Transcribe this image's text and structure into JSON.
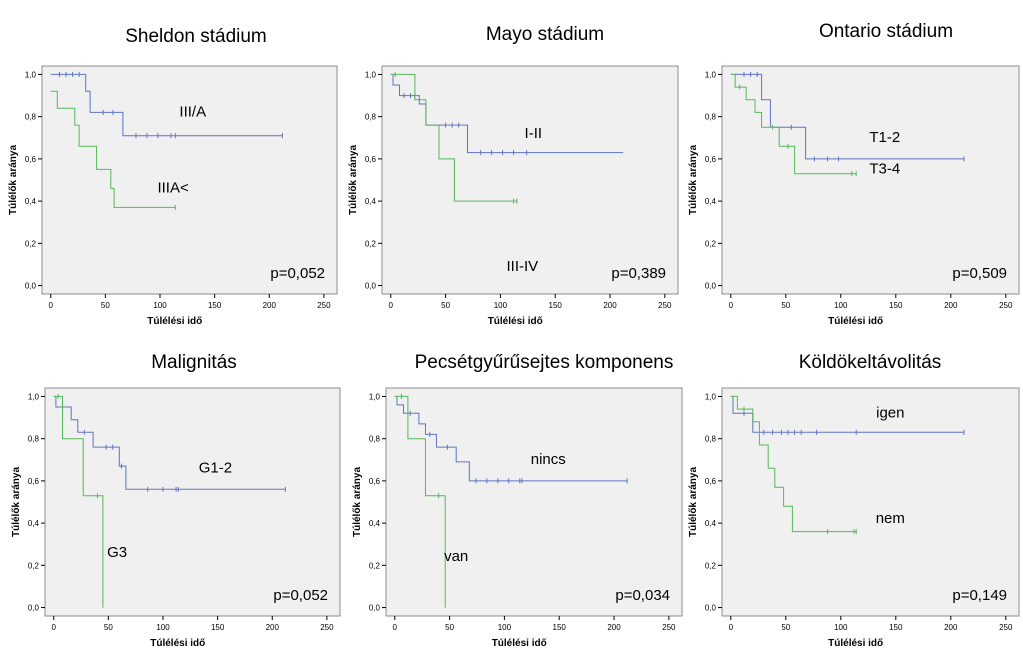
{
  "colors": {
    "series_a": "#5f74c4",
    "series_b": "#55b85a",
    "plot_bg": "#f0f0f0",
    "frame": "#8c8c8c"
  },
  "chart_data": [
    {
      "type": "line",
      "title": "Sheldon stádium",
      "xlabel": "Túlélési idő",
      "ylabel": "Túlélők aránya",
      "xlim": [
        -8,
        262
      ],
      "ylim": [
        -0.04,
        1.04
      ],
      "xticks": [
        "0",
        "50",
        "100",
        "150",
        "200",
        "250"
      ],
      "yticks": [
        "0,0",
        "0,2",
        "0,4",
        "0,6",
        "0,8",
        "1,0"
      ],
      "p_value": "p=0,052",
      "series": [
        {
          "name": "III/A",
          "label_pos": [
            130,
            0.8
          ],
          "color": "#5f74c4",
          "steps": [
            [
              0,
              1.0
            ],
            [
              32,
              1.0
            ],
            [
              32,
              0.92
            ],
            [
              36,
              0.92
            ],
            [
              36,
              0.82
            ],
            [
              66,
              0.82
            ],
            [
              66,
              0.71
            ],
            [
              212,
              0.71
            ]
          ],
          "censored": [
            [
              8,
              1.0
            ],
            [
              14,
              1.0
            ],
            [
              20,
              1.0
            ],
            [
              26,
              1.0
            ],
            [
              48,
              0.82
            ],
            [
              57,
              0.82
            ],
            [
              78,
              0.71
            ],
            [
              88,
              0.71
            ],
            [
              98,
              0.71
            ],
            [
              110,
              0.71
            ],
            [
              114,
              0.71
            ],
            [
              212,
              0.71
            ]
          ]
        },
        {
          "name": "IIIA<",
          "label_pos": [
            112,
            0.44
          ],
          "color": "#55b85a",
          "steps": [
            [
              0,
              0.92
            ],
            [
              6,
              0.92
            ],
            [
              6,
              0.84
            ],
            [
              22,
              0.84
            ],
            [
              22,
              0.76
            ],
            [
              26,
              0.76
            ],
            [
              26,
              0.66
            ],
            [
              42,
              0.66
            ],
            [
              42,
              0.55
            ],
            [
              55,
              0.55
            ],
            [
              55,
              0.46
            ],
            [
              58,
              0.46
            ],
            [
              58,
              0.37
            ],
            [
              114,
              0.37
            ]
          ],
          "censored": [
            [
              114,
              0.37
            ]
          ]
        }
      ]
    },
    {
      "type": "line",
      "title": "Mayo stádium",
      "xlabel": "Túlélési idő",
      "ylabel": "Túlélők aránya",
      "xlim": [
        -8,
        262
      ],
      "ylim": [
        -0.04,
        1.04
      ],
      "xticks": [
        "0",
        "50",
        "100",
        "150",
        "200",
        "250"
      ],
      "yticks": [
        "0,0",
        "0,2",
        "0,4",
        "0,6",
        "0,8",
        "1,0"
      ],
      "p_value": "p=0,389",
      "series": [
        {
          "name": "I-II",
          "label_pos": [
            130,
            0.7
          ],
          "color": "#5f74c4",
          "steps": [
            [
              0,
              1.0
            ],
            [
              2,
              1.0
            ],
            [
              2,
              0.95
            ],
            [
              8,
              0.95
            ],
            [
              8,
              0.9
            ],
            [
              26,
              0.9
            ],
            [
              26,
              0.86
            ],
            [
              32,
              0.86
            ],
            [
              32,
              0.76
            ],
            [
              70,
              0.76
            ],
            [
              70,
              0.63
            ],
            [
              212,
              0.63
            ]
          ],
          "censored": [
            [
              12,
              0.9
            ],
            [
              18,
              0.9
            ],
            [
              22,
              0.9
            ],
            [
              50,
              0.76
            ],
            [
              56,
              0.76
            ],
            [
              62,
              0.76
            ],
            [
              82,
              0.63
            ],
            [
              92,
              0.63
            ],
            [
              102,
              0.63
            ],
            [
              112,
              0.63
            ],
            [
              124,
              0.63
            ]
          ]
        },
        {
          "name": "III-IV",
          "label_pos": [
            120,
            0.07
          ],
          "color": "#55b85a",
          "steps": [
            [
              0,
              1.0
            ],
            [
              22,
              1.0
            ],
            [
              22,
              0.88
            ],
            [
              32,
              0.88
            ],
            [
              32,
              0.76
            ],
            [
              44,
              0.76
            ],
            [
              44,
              0.6
            ],
            [
              58,
              0.6
            ],
            [
              58,
              0.4
            ],
            [
              115,
              0.4
            ]
          ],
          "censored": [
            [
              4,
              1.0
            ],
            [
              112,
              0.4
            ],
            [
              115,
              0.4
            ]
          ]
        }
      ]
    },
    {
      "type": "line",
      "title": "Ontario stádium",
      "xlabel": "Túlélési idő",
      "ylabel": "Túlélők aránya",
      "xlim": [
        -8,
        262
      ],
      "ylim": [
        -0.04,
        1.04
      ],
      "xticks": [
        "0",
        "50",
        "100",
        "150",
        "200",
        "250"
      ],
      "yticks": [
        "0,0",
        "0,2",
        "0,4",
        "0,6",
        "0,8",
        "1,0"
      ],
      "p_value": "p=0,509",
      "series": [
        {
          "name": "T1-2",
          "label_pos": [
            140,
            0.68
          ],
          "color": "#5f74c4",
          "steps": [
            [
              0,
              1.0
            ],
            [
              28,
              1.0
            ],
            [
              28,
              0.88
            ],
            [
              36,
              0.88
            ],
            [
              36,
              0.75
            ],
            [
              68,
              0.75
            ],
            [
              68,
              0.6
            ],
            [
              212,
              0.6
            ]
          ],
          "censored": [
            [
              12,
              1.0
            ],
            [
              18,
              1.0
            ],
            [
              24,
              1.0
            ],
            [
              55,
              0.75
            ],
            [
              76,
              0.6
            ],
            [
              88,
              0.6
            ],
            [
              98,
              0.6
            ],
            [
              212,
              0.6
            ]
          ]
        },
        {
          "name": "T3-4",
          "label_pos": [
            140,
            0.53
          ],
          "color": "#55b85a",
          "steps": [
            [
              0,
              1.0
            ],
            [
              4,
              1.0
            ],
            [
              4,
              0.94
            ],
            [
              14,
              0.94
            ],
            [
              14,
              0.88
            ],
            [
              22,
              0.88
            ],
            [
              22,
              0.82
            ],
            [
              28,
              0.82
            ],
            [
              28,
              0.75
            ],
            [
              44,
              0.75
            ],
            [
              44,
              0.66
            ],
            [
              58,
              0.66
            ],
            [
              58,
              0.53
            ],
            [
              114,
              0.53
            ]
          ],
          "censored": [
            [
              8,
              0.94
            ],
            [
              38,
              0.75
            ],
            [
              52,
              0.66
            ],
            [
              110,
              0.53
            ],
            [
              114,
              0.53
            ]
          ]
        }
      ]
    },
    {
      "type": "line",
      "title": "Malignitás",
      "xlabel": "Túlélési idő",
      "ylabel": "Túlélők aránya",
      "xlim": [
        -8,
        262
      ],
      "ylim": [
        -0.04,
        1.04
      ],
      "xticks": [
        "0",
        "50",
        "100",
        "150",
        "200",
        "250"
      ],
      "yticks": [
        "0,0",
        "0,2",
        "0,4",
        "0,6",
        "0,8",
        "1,0"
      ],
      "p_value": "p=0,052",
      "series": [
        {
          "name": "G1-2",
          "label_pos": [
            148,
            0.64
          ],
          "color": "#5f74c4",
          "steps": [
            [
              0,
              1.0
            ],
            [
              2,
              1.0
            ],
            [
              2,
              0.95
            ],
            [
              16,
              0.95
            ],
            [
              16,
              0.89
            ],
            [
              22,
              0.89
            ],
            [
              22,
              0.83
            ],
            [
              36,
              0.83
            ],
            [
              36,
              0.76
            ],
            [
              60,
              0.76
            ],
            [
              60,
              0.67
            ],
            [
              66,
              0.67
            ],
            [
              66,
              0.56
            ],
            [
              212,
              0.56
            ]
          ],
          "censored": [
            [
              8,
              0.95
            ],
            [
              28,
              0.83
            ],
            [
              48,
              0.76
            ],
            [
              54,
              0.76
            ],
            [
              62,
              0.67
            ],
            [
              86,
              0.56
            ],
            [
              100,
              0.56
            ],
            [
              112,
              0.56
            ],
            [
              114,
              0.56
            ],
            [
              212,
              0.56
            ]
          ]
        },
        {
          "name": "G3",
          "label_pos": [
            58,
            0.24
          ],
          "color": "#55b85a",
          "steps": [
            [
              0,
              1.0
            ],
            [
              8,
              1.0
            ],
            [
              8,
              0.8
            ],
            [
              27,
              0.8
            ],
            [
              27,
              0.53
            ],
            [
              45,
              0.53
            ],
            [
              45,
              0.0
            ]
          ],
          "censored": [
            [
              4,
              1.0
            ],
            [
              40,
              0.53
            ]
          ]
        }
      ]
    },
    {
      "type": "line",
      "title": "Pecsétgyűrűsejtes komponens",
      "xlabel": "Túlélési idő",
      "ylabel": "Túlélők aránya",
      "xlim": [
        -8,
        262
      ],
      "ylim": [
        -0.04,
        1.04
      ],
      "xticks": [
        "0",
        "50",
        "100",
        "150",
        "200",
        "250"
      ],
      "yticks": [
        "0,0",
        "0,2",
        "0,4",
        "0,6",
        "0,8",
        "1,0"
      ],
      "p_value": "p=0,034",
      "series": [
        {
          "name": "nincs",
          "label_pos": [
            140,
            0.68
          ],
          "color": "#5f74c4",
          "steps": [
            [
              0,
              1.0
            ],
            [
              2,
              1.0
            ],
            [
              2,
              0.96
            ],
            [
              8,
              0.96
            ],
            [
              8,
              0.92
            ],
            [
              22,
              0.92
            ],
            [
              22,
              0.87
            ],
            [
              28,
              0.87
            ],
            [
              28,
              0.82
            ],
            [
              38,
              0.82
            ],
            [
              38,
              0.76
            ],
            [
              56,
              0.76
            ],
            [
              56,
              0.69
            ],
            [
              68,
              0.69
            ],
            [
              68,
              0.6
            ],
            [
              212,
              0.6
            ]
          ],
          "censored": [
            [
              14,
              0.92
            ],
            [
              32,
              0.82
            ],
            [
              48,
              0.76
            ],
            [
              74,
              0.6
            ],
            [
              84,
              0.6
            ],
            [
              94,
              0.6
            ],
            [
              104,
              0.6
            ],
            [
              114,
              0.6
            ],
            [
              116,
              0.6
            ],
            [
              212,
              0.6
            ]
          ]
        },
        {
          "name": "van",
          "label_pos": [
            56,
            0.22
          ],
          "color": "#55b85a",
          "steps": [
            [
              0,
              1.0
            ],
            [
              12,
              1.0
            ],
            [
              12,
              0.8
            ],
            [
              28,
              0.8
            ],
            [
              28,
              0.53
            ],
            [
              46,
              0.53
            ],
            [
              46,
              0.0
            ]
          ],
          "censored": [
            [
              6,
              1.0
            ],
            [
              40,
              0.53
            ]
          ]
        }
      ]
    },
    {
      "type": "line",
      "title": "Köldökeltávolitás",
      "xlabel": "Túlélési idő",
      "ylabel": "Túlélők aránya",
      "xlim": [
        -8,
        262
      ],
      "ylim": [
        -0.04,
        1.04
      ],
      "xticks": [
        "0",
        "50",
        "100",
        "150",
        "200",
        "250"
      ],
      "yticks": [
        "0,0",
        "0,2",
        "0,4",
        "0,6",
        "0,8",
        "1,0"
      ],
      "p_value": "p=0,149",
      "series": [
        {
          "name": "igen",
          "label_pos": [
            145,
            0.9
          ],
          "color": "#5f74c4",
          "steps": [
            [
              0,
              1.0
            ],
            [
              2,
              1.0
            ],
            [
              2,
              0.92
            ],
            [
              20,
              0.92
            ],
            [
              20,
              0.83
            ],
            [
              212,
              0.83
            ]
          ],
          "censored": [
            [
              12,
              0.92
            ],
            [
              30,
              0.83
            ],
            [
              38,
              0.83
            ],
            [
              46,
              0.83
            ],
            [
              52,
              0.83
            ],
            [
              58,
              0.83
            ],
            [
              64,
              0.83
            ],
            [
              78,
              0.83
            ],
            [
              114,
              0.83
            ],
            [
              212,
              0.83
            ]
          ]
        },
        {
          "name": "nem",
          "label_pos": [
            145,
            0.4
          ],
          "color": "#55b85a",
          "steps": [
            [
              0,
              1.0
            ],
            [
              6,
              1.0
            ],
            [
              6,
              0.94
            ],
            [
              20,
              0.94
            ],
            [
              20,
              0.88
            ],
            [
              26,
              0.88
            ],
            [
              26,
              0.77
            ],
            [
              34,
              0.77
            ],
            [
              34,
              0.66
            ],
            [
              40,
              0.66
            ],
            [
              40,
              0.57
            ],
            [
              48,
              0.57
            ],
            [
              48,
              0.48
            ],
            [
              56,
              0.48
            ],
            [
              56,
              0.36
            ],
            [
              114,
              0.36
            ]
          ],
          "censored": [
            [
              12,
              0.94
            ],
            [
              88,
              0.36
            ],
            [
              112,
              0.36
            ],
            [
              114,
              0.36
            ]
          ]
        }
      ]
    }
  ]
}
